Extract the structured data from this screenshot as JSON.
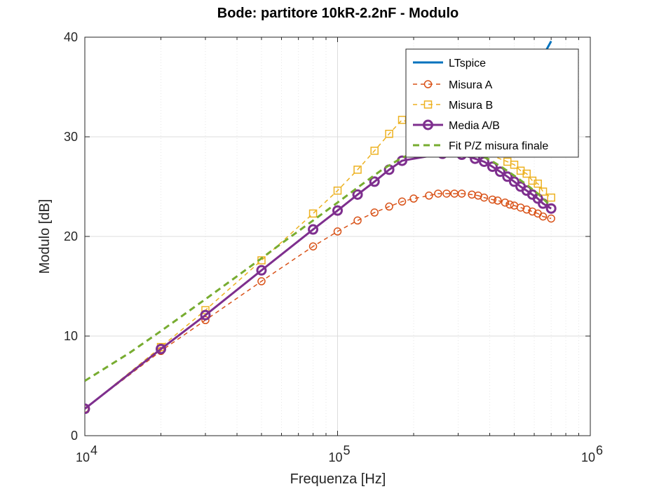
{
  "chart_data": {
    "type": "line",
    "title": "Bode: partitore 10kR-2.2nF - Modulo",
    "xlabel": "Frequenza [Hz]",
    "ylabel": "Modulo [dB]",
    "xscale": "log",
    "xlim": [
      10000,
      1000000
    ],
    "ylim": [
      0,
      40
    ],
    "yticks": [
      0,
      10,
      20,
      30,
      40
    ],
    "xticks": [
      10000,
      100000,
      1000000
    ],
    "xtick_labels": [
      {
        "base": "10",
        "exp": "4"
      },
      {
        "base": "10",
        "exp": "5"
      },
      {
        "base": "10",
        "exp": "6"
      }
    ],
    "grid": true,
    "legend_position": "top-right",
    "series": [
      {
        "name": "LTspice",
        "color": "#0072BD",
        "style": "solid",
        "marker": "none",
        "x": [
          640000,
          700000
        ],
        "y": [
          37.8,
          39.6
        ]
      },
      {
        "name": "Misura A",
        "color": "#D95319",
        "style": "dashed",
        "marker": "circle",
        "x": [
          10000,
          20000,
          30000,
          50000,
          80000,
          100000,
          120000,
          140000,
          160000,
          180000,
          200000,
          230000,
          250000,
          270000,
          290000,
          310000,
          340000,
          360000,
          380000,
          410000,
          430000,
          460000,
          480000,
          500000,
          530000,
          560000,
          590000,
          620000,
          650000,
          700000
        ],
        "y": [
          2.7,
          8.5,
          11.6,
          15.5,
          19.0,
          20.5,
          21.6,
          22.4,
          23.0,
          23.5,
          23.8,
          24.1,
          24.3,
          24.3,
          24.3,
          24.3,
          24.2,
          24.1,
          23.9,
          23.7,
          23.6,
          23.4,
          23.2,
          23.1,
          22.9,
          22.7,
          22.5,
          22.3,
          22.0,
          21.8
        ]
      },
      {
        "name": "Misura B",
        "color": "#EDB120",
        "style": "dashed",
        "marker": "square",
        "x": [
          10000,
          20000,
          30000,
          50000,
          80000,
          100000,
          120000,
          140000,
          160000,
          180000,
          470000,
          500000,
          530000,
          560000,
          590000,
          620000,
          650000,
          700000
        ],
        "y": [
          2.7,
          8.9,
          12.6,
          17.6,
          22.3,
          24.6,
          26.7,
          28.6,
          30.3,
          31.7,
          27.5,
          27.2,
          26.6,
          26.3,
          25.6,
          25.3,
          24.5,
          23.9
        ]
      },
      {
        "name": "Media A/B",
        "color": "#7E2F8E",
        "style": "solid",
        "marker": "circle",
        "x": [
          10000,
          20000,
          30000,
          50000,
          80000,
          100000,
          120000,
          140000,
          160000,
          180000,
          260000,
          310000,
          350000,
          380000,
          410000,
          440000,
          470000,
          500000,
          530000,
          560000,
          590000,
          620000,
          650000,
          700000
        ],
        "y": [
          2.7,
          8.7,
          12.1,
          16.6,
          20.7,
          22.6,
          24.2,
          25.5,
          26.7,
          27.6,
          28.3,
          28.2,
          27.8,
          27.5,
          27.0,
          26.5,
          26.0,
          25.5,
          25.0,
          24.6,
          24.2,
          23.8,
          23.3,
          22.8
        ]
      },
      {
        "name": "Fit P/Z misura finale",
        "color": "#77AC30",
        "style": "dashed",
        "marker": "none",
        "x": [
          10000,
          15000,
          20000,
          30000,
          40000,
          50000,
          60000,
          80000,
          100000,
          120000,
          150000,
          180000,
          220000,
          260000,
          300000,
          350000,
          400000,
          450000,
          500000,
          560000,
          620000,
          700000
        ],
        "y": [
          5.5,
          8.3,
          10.5,
          13.7,
          16.0,
          17.8,
          19.3,
          21.6,
          23.4,
          24.9,
          26.7,
          27.9,
          28.8,
          29.1,
          28.9,
          28.4,
          27.7,
          26.9,
          26.1,
          25.2,
          24.3,
          23.0
        ]
      }
    ]
  }
}
